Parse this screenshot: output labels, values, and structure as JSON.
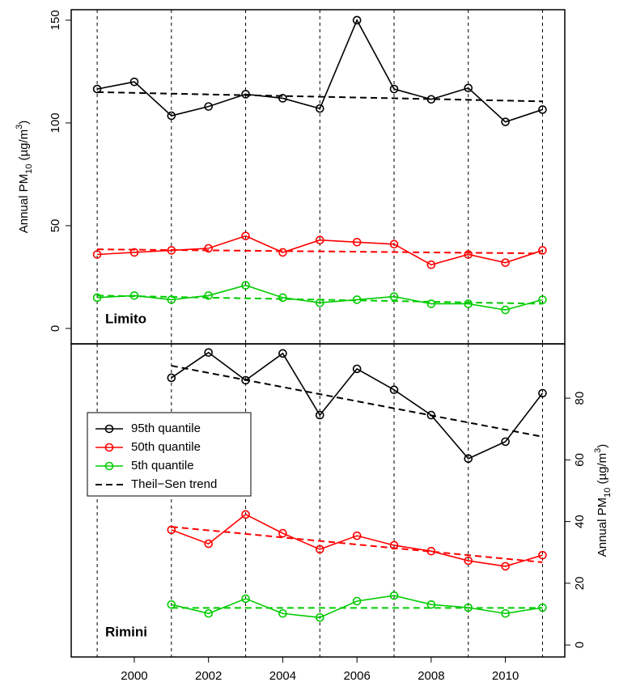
{
  "chart_data": [
    {
      "type": "line",
      "panel_label": "Limito",
      "y_axis_side": "left",
      "y_label": {
        "main": "Annual PM",
        "sub": "10",
        "unit": " (µg/m",
        "sup": "3",
        "end": ")"
      },
      "x": [
        1999,
        2000,
        2001,
        2002,
        2003,
        2004,
        2005,
        2006,
        2007,
        2008,
        2009,
        2010,
        2011
      ],
      "xlim": [
        1998.3,
        2011.6
      ],
      "ylim": [
        -7.5,
        155.1
      ],
      "yticks": [
        0,
        50,
        100,
        150
      ],
      "xgrid": [
        1999,
        2001,
        2003,
        2005,
        2007,
        2009,
        2011
      ],
      "series": [
        {
          "color": "#000000",
          "values": [
            116.5,
            120,
            103.5,
            108,
            114,
            112,
            107,
            150,
            116.5,
            111.5,
            117,
            100.5,
            106.5
          ]
        },
        {
          "color": "#ff0000",
          "values": [
            36,
            37,
            38,
            39,
            45,
            37,
            43,
            42,
            41,
            31,
            36,
            32,
            38
          ]
        },
        {
          "color": "#00cc00",
          "values": [
            15,
            16,
            14,
            16,
            21,
            15,
            12.5,
            14,
            15.5,
            12,
            12,
            9,
            14
          ]
        }
      ],
      "trends": [
        {
          "color": "#000000",
          "x": [
            1999,
            2011
          ],
          "values": [
            115,
            110.5
          ]
        },
        {
          "color": "#ff0000",
          "x": [
            1999,
            2011
          ],
          "values": [
            38.5,
            36.5
          ]
        },
        {
          "color": "#00cc00",
          "x": [
            1999,
            2011
          ],
          "values": [
            16,
            12
          ]
        }
      ]
    },
    {
      "type": "line",
      "panel_label": "Rimini",
      "y_axis_side": "right",
      "y_label": {
        "main": "Annual PM",
        "sub": "10",
        "unit": " (µg/m",
        "sup": "3",
        "end": ")"
      },
      "x": [
        2001,
        2002,
        2003,
        2004,
        2005,
        2006,
        2007,
        2008,
        2009,
        2010,
        2011
      ],
      "xlim": [
        1998.3,
        2011.6
      ],
      "ylim": [
        -3.9,
        97.6
      ],
      "yticks": [
        0,
        20,
        40,
        60,
        80
      ],
      "xticks": [
        2000,
        2002,
        2004,
        2006,
        2008,
        2010
      ],
      "xgrid": [
        1999,
        2001,
        2003,
        2005,
        2007,
        2009,
        2011
      ],
      "series": [
        {
          "name": "95th quantile",
          "color": "#000000",
          "values": [
            86.6,
            94.8,
            85.8,
            94.5,
            74.5,
            89.5,
            82.7,
            74.5,
            60.4,
            65.9,
            81.6
          ]
        },
        {
          "name": "50th quantile",
          "color": "#ff0000",
          "values": [
            37.3,
            32.8,
            42.3,
            36.2,
            31,
            35.4,
            32.3,
            30.4,
            27.3,
            25.5,
            29.1
          ]
        },
        {
          "name": "5th quantile",
          "color": "#00cc00",
          "values": [
            13.1,
            10.2,
            15,
            10.2,
            8.9,
            14.2,
            16,
            13.1,
            12.1,
            10.2,
            12.1
          ]
        }
      ],
      "trends": [
        {
          "color": "#000000",
          "x": [
            2001,
            2011
          ],
          "values": [
            90.5,
            67.5
          ]
        },
        {
          "color": "#ff0000",
          "x": [
            2001,
            2011
          ],
          "values": [
            38.3,
            26.8
          ]
        },
        {
          "color": "#00cc00",
          "x": [
            2001,
            2011
          ],
          "values": [
            12,
            12
          ]
        }
      ],
      "trend_label": "Theil−Sen trend"
    }
  ]
}
